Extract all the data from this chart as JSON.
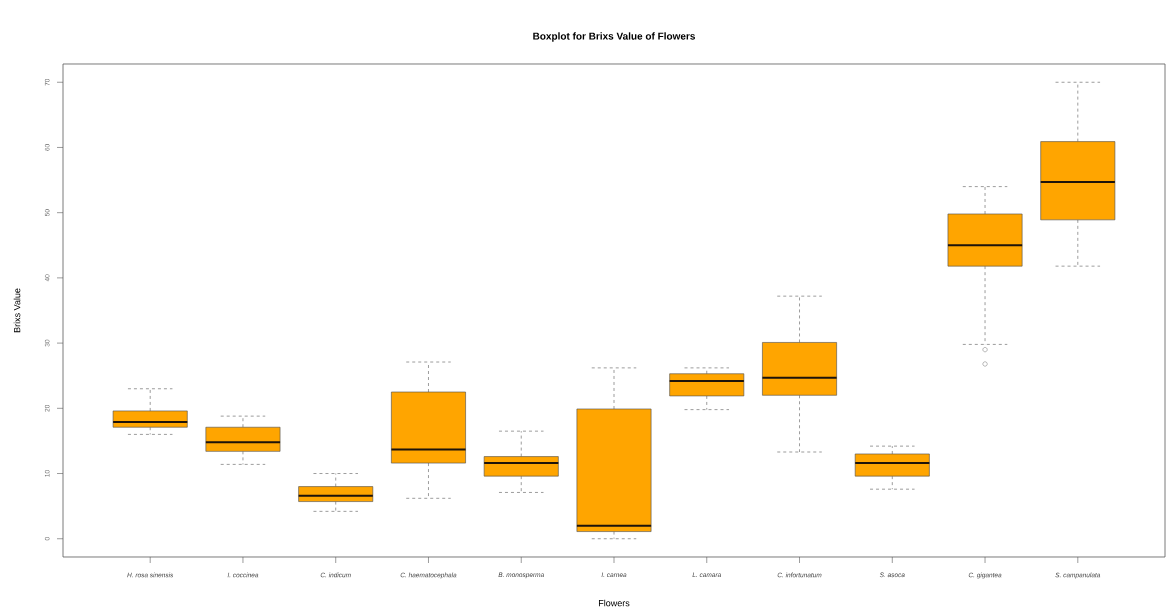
{
  "chart_data": {
    "type": "box",
    "title": "Boxplot for Brixs Value of Flowers",
    "xlabel": "Flowers",
    "ylabel": "Brixs Value",
    "categories": [
      "H. rosa sinensis",
      "I. coccinea",
      "C. indicum",
      "C. haematocephala",
      "B. monosperma",
      "I. carnea",
      "L. camara",
      "C. infortunatum",
      "S. asoca",
      "C. gigantea",
      "S. campanulata"
    ],
    "color": "#ffa500",
    "boxes": [
      {
        "low": 16.0,
        "q1": 17.1,
        "median": 17.9,
        "q3": 19.6,
        "high": 23.0
      },
      {
        "low": 11.4,
        "q1": 13.4,
        "median": 14.8,
        "q3": 17.1,
        "high": 18.8
      },
      {
        "low": 4.2,
        "q1": 5.7,
        "median": 6.6,
        "q3": 8.0,
        "high": 10.0
      },
      {
        "low": 6.2,
        "q1": 11.6,
        "median": 13.7,
        "q3": 22.5,
        "high": 27.1
      },
      {
        "low": 7.1,
        "q1": 9.6,
        "median": 11.6,
        "q3": 12.6,
        "high": 16.5
      },
      {
        "low": 0.0,
        "q1": 1.1,
        "median": 2.0,
        "q3": 19.9,
        "high": 26.2
      },
      {
        "low": 19.8,
        "q1": 21.9,
        "median": 24.2,
        "q3": 25.3,
        "high": 26.2
      },
      {
        "low": 13.3,
        "q1": 22.0,
        "median": 24.7,
        "q3": 30.1,
        "high": 37.2
      },
      {
        "low": 7.6,
        "q1": 9.6,
        "median": 11.6,
        "q3": 13.0,
        "high": 14.2
      },
      {
        "low": 29.8,
        "q1": 41.8,
        "median": 45.0,
        "q3": 49.8,
        "high": 54.0,
        "outliers": [
          29.0,
          26.8
        ]
      },
      {
        "low": 41.8,
        "q1": 48.9,
        "median": 54.7,
        "q3": 60.9,
        "high": 70.0
      }
    ],
    "ylim": [
      -2.8,
      72.8
    ],
    "yticks": [
      0,
      10,
      20,
      30,
      40,
      50,
      60,
      70
    ],
    "grid": false
  }
}
